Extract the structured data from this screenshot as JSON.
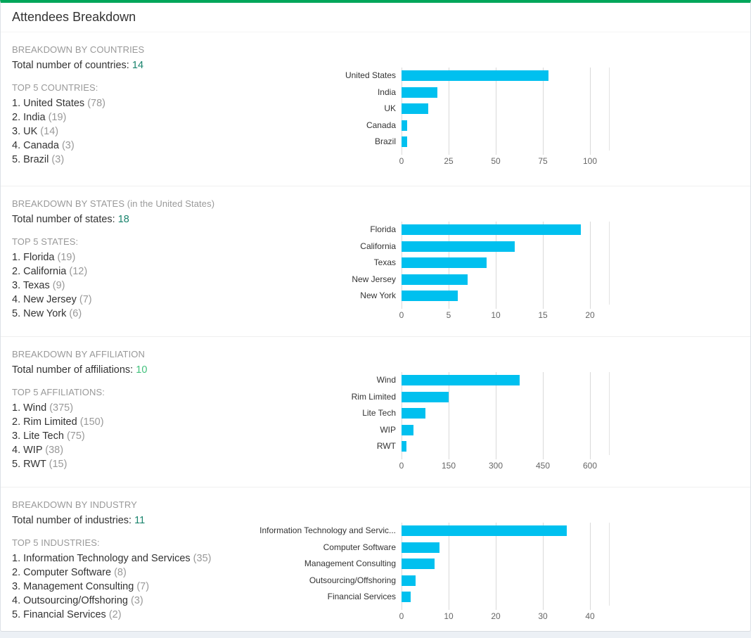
{
  "panel": {
    "title": "Attendees Breakdown"
  },
  "colors": {
    "accent_green": "#00a65a",
    "bar": "#00c0ef",
    "count_teal": "#18836c",
    "count_bright": "#41c17c",
    "muted_text": "#999999",
    "grid": "#d9d9d9"
  },
  "sections": [
    {
      "header": "BREAKDOWN BY COUNTRIES",
      "total_label": "Total number of countries:",
      "total_value": "14",
      "total_color": "#18836c",
      "top_label": "TOP 5 COUNTRIES:",
      "items": [
        {
          "rank": "1.",
          "name": "United States",
          "count": "(78)"
        },
        {
          "rank": "2.",
          "name": "India",
          "count": "(19)"
        },
        {
          "rank": "3.",
          "name": "UK",
          "count": "(14)"
        },
        {
          "rank": "4.",
          "name": "Canada",
          "count": "(3)"
        },
        {
          "rank": "5.",
          "name": "Brazil",
          "count": "(3)"
        }
      ]
    },
    {
      "header": "BREAKDOWN BY STATES (in the United States)",
      "total_label": "Total number of states:",
      "total_value": "18",
      "total_color": "#18836c",
      "top_label": "TOP 5 STATES:",
      "items": [
        {
          "rank": "1.",
          "name": "Florida",
          "count": "(19)"
        },
        {
          "rank": "2.",
          "name": "California",
          "count": "(12)"
        },
        {
          "rank": "3.",
          "name": "Texas",
          "count": "(9)"
        },
        {
          "rank": "4.",
          "name": "New Jersey",
          "count": "(7)"
        },
        {
          "rank": "5.",
          "name": "New York",
          "count": "(6)"
        }
      ]
    },
    {
      "header": "BREAKDOWN BY AFFILIATION",
      "total_label": "Total number of affiliations:",
      "total_value": "10",
      "total_color": "#41c17c",
      "top_label": "TOP 5 AFFILIATIONS:",
      "items": [
        {
          "rank": "1.",
          "name": "Wind",
          "count": "(375)"
        },
        {
          "rank": "2.",
          "name": "Rim Limited",
          "count": "(150)"
        },
        {
          "rank": "3.",
          "name": "Lite Tech",
          "count": "(75)"
        },
        {
          "rank": "4.",
          "name": "WIP",
          "count": "(38)"
        },
        {
          "rank": "5.",
          "name": "RWT",
          "count": "(15)"
        }
      ]
    },
    {
      "header": "BREAKDOWN BY INDUSTRY",
      "total_label": "Total number of industries:",
      "total_value": "11",
      "total_color": "#18836c",
      "top_label": "TOP 5 INDUSTRIES:",
      "items": [
        {
          "rank": "1.",
          "name": "Information Technology and Services",
          "count": "(35)"
        },
        {
          "rank": "2.",
          "name": "Computer Software",
          "count": "(8)"
        },
        {
          "rank": "3.",
          "name": "Management Consulting",
          "count": "(7)"
        },
        {
          "rank": "4.",
          "name": "Outsourcing/Offshoring",
          "count": "(3)"
        },
        {
          "rank": "5.",
          "name": "Financial Services",
          "count": "(2)"
        }
      ]
    }
  ],
  "chart_data": [
    {
      "type": "bar",
      "orientation": "horizontal",
      "categories": [
        "United States",
        "India",
        "UK",
        "Canada",
        "Brazil"
      ],
      "values": [
        78,
        19,
        14,
        3,
        3
      ],
      "xticks": [
        0,
        25,
        50,
        75,
        100
      ],
      "xlim": [
        0,
        110
      ],
      "grid": true,
      "bar_color": "#00c0ef",
      "title": "",
      "xlabel": "",
      "ylabel": ""
    },
    {
      "type": "bar",
      "orientation": "horizontal",
      "categories": [
        "Florida",
        "California",
        "Texas",
        "New Jersey",
        "New York"
      ],
      "values": [
        19,
        12,
        9,
        7,
        6
      ],
      "xticks": [
        0,
        5,
        10,
        15,
        20
      ],
      "xlim": [
        0,
        22
      ],
      "grid": true,
      "bar_color": "#00c0ef",
      "title": "",
      "xlabel": "",
      "ylabel": ""
    },
    {
      "type": "bar",
      "orientation": "horizontal",
      "categories": [
        "Wind",
        "Rim Limited",
        "Lite Tech",
        "WIP",
        "RWT"
      ],
      "values": [
        375,
        150,
        75,
        38,
        15
      ],
      "xticks": [
        0,
        150,
        300,
        450,
        600
      ],
      "xlim": [
        0,
        660
      ],
      "grid": true,
      "bar_color": "#00c0ef",
      "title": "",
      "xlabel": "",
      "ylabel": ""
    },
    {
      "type": "bar",
      "orientation": "horizontal",
      "categories": [
        "Information Technology and Servic...",
        "Computer Software",
        "Management Consulting",
        "Outsourcing/Offshoring",
        "Financial Services"
      ],
      "values": [
        35,
        8,
        7,
        3,
        2
      ],
      "xticks": [
        0,
        10,
        20,
        30,
        40
      ],
      "xlim": [
        0,
        44
      ],
      "grid": true,
      "bar_color": "#00c0ef",
      "title": "",
      "xlabel": "",
      "ylabel": ""
    }
  ]
}
